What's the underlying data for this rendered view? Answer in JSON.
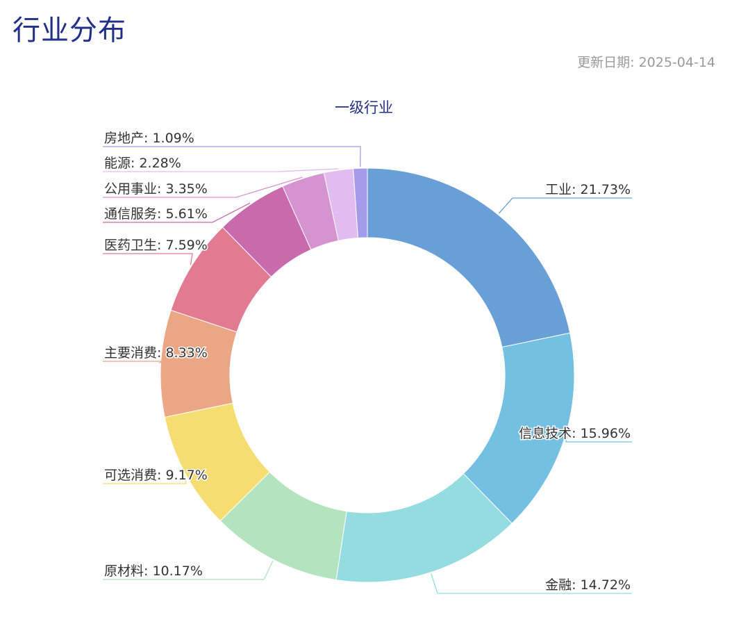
{
  "page": {
    "title": "行业分布",
    "update_label": "更新日期:",
    "update_date": "2025-04-14"
  },
  "colors": {
    "title": "#22308a",
    "chart_title": "#22308a",
    "label_text": "#333333",
    "update_text": "#9a9a9a"
  },
  "chart_data": {
    "type": "pie",
    "variant": "donut",
    "title": "一级行业",
    "label_format": "name: value%",
    "categories": [
      "工业",
      "信息技术",
      "金融",
      "原材料",
      "可选消费",
      "主要消费",
      "医药卫生",
      "通信服务",
      "公用事业",
      "能源",
      "房地产"
    ],
    "values": [
      21.73,
      15.96,
      14.72,
      10.17,
      9.17,
      8.33,
      7.59,
      5.61,
      3.35,
      2.28,
      1.09
    ],
    "value_labels": [
      "21.73%",
      "15.96%",
      "14.72%",
      "10.17%",
      "9.17%",
      "8.33%",
      "7.59%",
      "5.61%",
      "3.35%",
      "2.28%",
      "1.09%"
    ],
    "colors": [
      "#679fd6",
      "#73c0e3",
      "#95dce0",
      "#b4e4bf",
      "#f5dd71",
      "#eba686",
      "#e27a92",
      "#c96aac",
      "#d594d0",
      "#e0bcf0",
      "#a59bea"
    ],
    "legend": "none"
  }
}
